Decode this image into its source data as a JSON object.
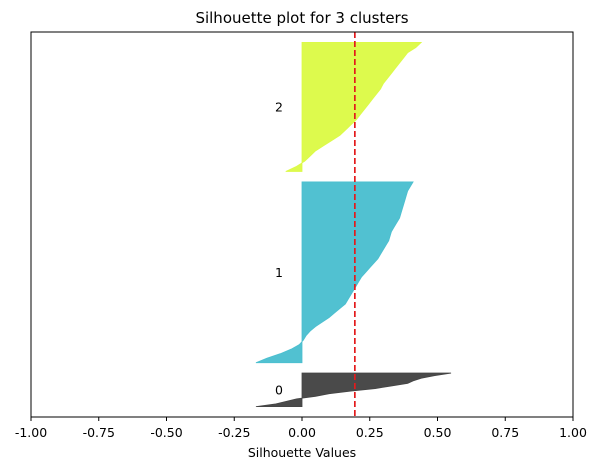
{
  "chart_data": {
    "type": "area",
    "title": "Silhouette plot for 3 clusters",
    "xlabel": "Silhouette Values",
    "ylabel": "",
    "xlim": [
      -1.0,
      1.0
    ],
    "xticks": [
      "-1.00",
      "-0.75",
      "-0.50",
      "-0.25",
      "0.00",
      "0.25",
      "0.50",
      "0.75",
      "1.00"
    ],
    "xtick_values": [
      -1.0,
      -0.75,
      -0.5,
      -0.25,
      0.0,
      0.25,
      0.5,
      0.75,
      1.0
    ],
    "yticks": [],
    "grid": false,
    "average_silhouette": 0.195,
    "average_line_color": "#e31a1c",
    "average_line_style": "dashed",
    "clusters": [
      {
        "label": "0",
        "color": "#444444",
        "size": 13,
        "sorted_silhouette_values": [
          -0.17,
          -0.1,
          -0.06,
          -0.02,
          0.05,
          0.1,
          0.18,
          0.27,
          0.33,
          0.39,
          0.41,
          0.44,
          0.49,
          0.55
        ]
      },
      {
        "label": "1",
        "color": "#4bbfcf",
        "size": 70,
        "sorted_silhouette_values": [
          -0.17,
          -0.13,
          -0.08,
          -0.04,
          -0.01,
          0.005,
          0.015,
          0.03,
          0.05,
          0.075,
          0.1,
          0.12,
          0.14,
          0.16,
          0.17,
          0.18,
          0.19,
          0.2,
          0.21,
          0.22,
          0.235,
          0.25,
          0.265,
          0.28,
          0.29,
          0.3,
          0.31,
          0.32,
          0.325,
          0.33,
          0.34,
          0.35,
          0.36,
          0.365,
          0.37,
          0.375,
          0.38,
          0.385,
          0.39,
          0.4,
          0.41
        ]
      },
      {
        "label": "2",
        "color": "#dcfa47",
        "size": 50,
        "sorted_silhouette_values": [
          -0.06,
          -0.02,
          0.01,
          0.03,
          0.05,
          0.08,
          0.11,
          0.14,
          0.16,
          0.18,
          0.2,
          0.215,
          0.23,
          0.245,
          0.26,
          0.275,
          0.29,
          0.3,
          0.315,
          0.33,
          0.345,
          0.36,
          0.375,
          0.39,
          0.42,
          0.44
        ]
      }
    ]
  }
}
